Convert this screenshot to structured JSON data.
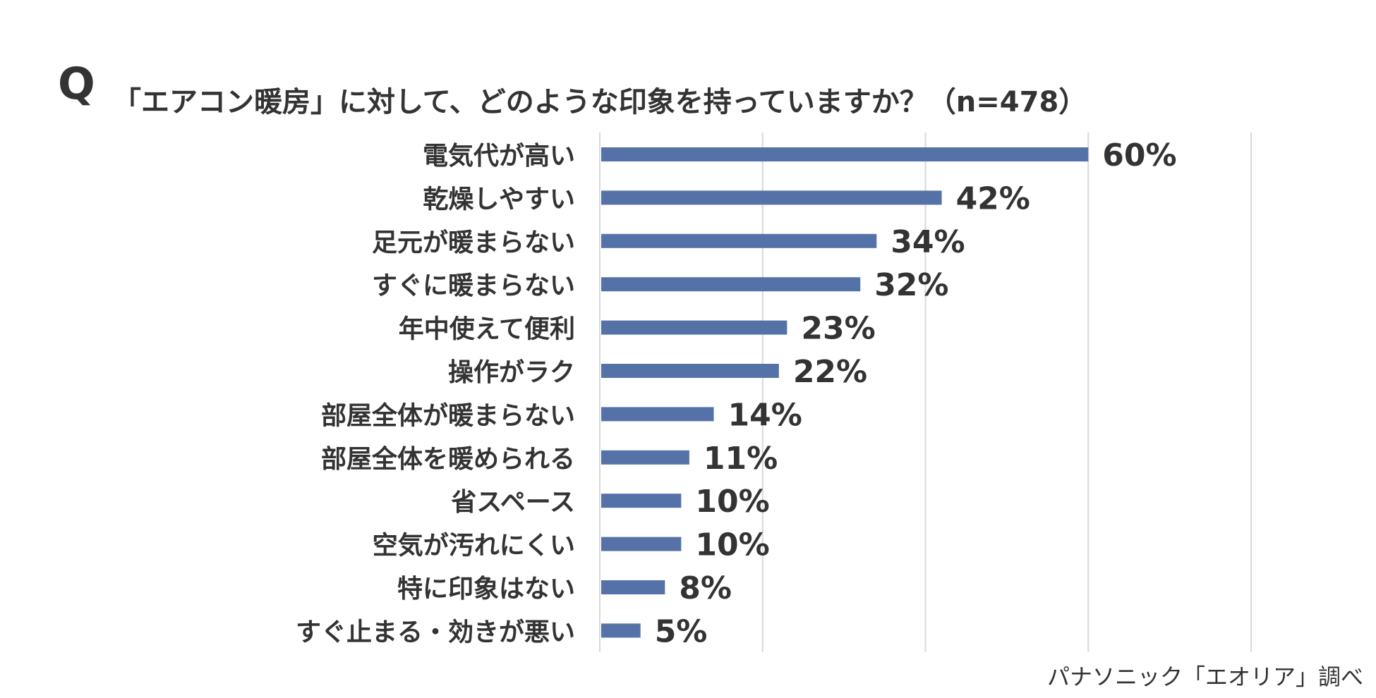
{
  "chart_data": {
    "type": "bar",
    "orientation": "horizontal",
    "title_prefix": "Q",
    "title": "「エアコン暖房」に対して、どのような印象を持っていますか？（n=478）",
    "categories": [
      "電気代が高い",
      "乾燥しやすい",
      "足元が暖まらない",
      "すぐに暖まらない",
      "年中使えて便利",
      "操作がラク",
      "部屋全体が暖まらない",
      "部屋全体を暖められる",
      "省スペース",
      "空気が汚れにくい",
      "特に印象はない",
      "すぐ止まる・効きが悪い"
    ],
    "values": [
      60,
      42,
      34,
      32,
      23,
      22,
      14,
      11,
      10,
      10,
      8,
      5
    ],
    "data_labels": [
      "60%",
      "42%",
      "34%",
      "32%",
      "23%",
      "22%",
      "14%",
      "11%",
      "10%",
      "10%",
      "8%",
      "5%"
    ],
    "xlim": [
      0,
      80
    ],
    "grid": true,
    "grid_step": 20,
    "bar_color": "#5572a8",
    "grid_color": "#d9d9d9",
    "source": "パナソニック「エオリア」調べ"
  }
}
